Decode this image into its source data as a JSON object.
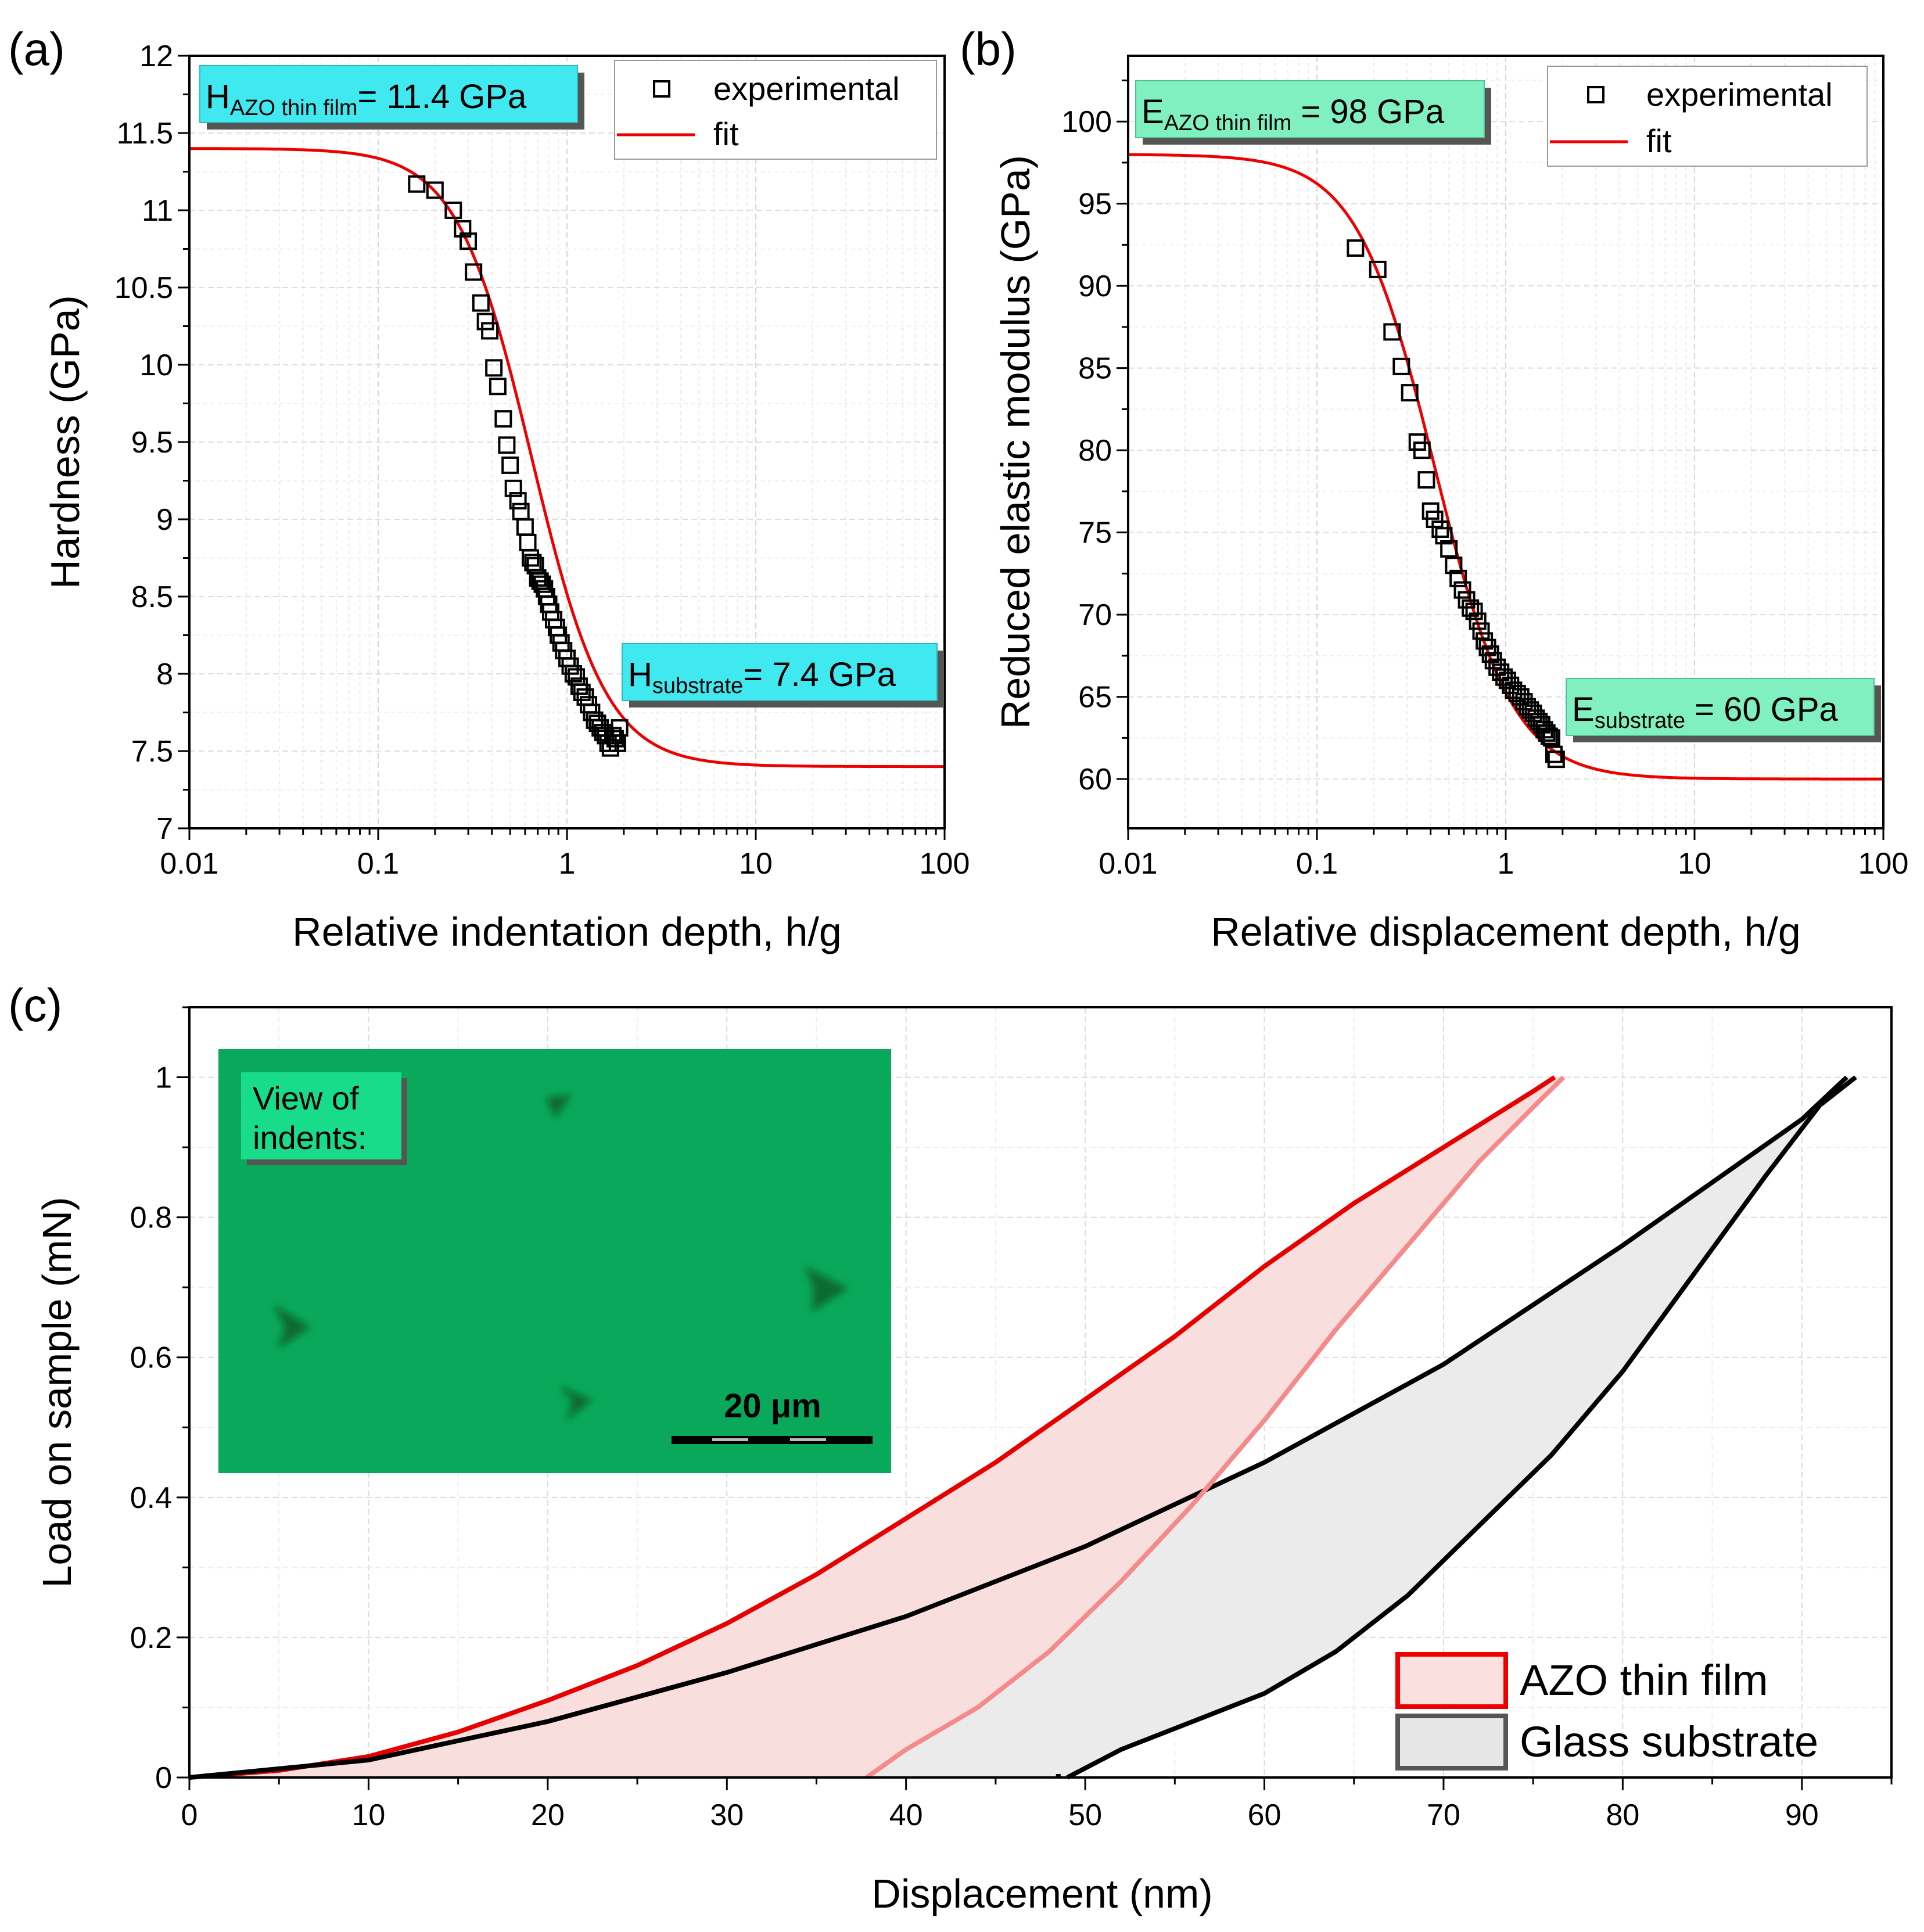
{
  "chart_data": [
    {
      "panel": "(a)",
      "type": "scatter",
      "xscale": "log",
      "xlabel": "Relative indentation depth, h/g",
      "ylabel": "Hardness (GPa)",
      "xlim": [
        0.01,
        100
      ],
      "ylim": [
        7,
        12
      ],
      "xticks": [
        "0.01",
        "0.1",
        "1",
        "10",
        "100"
      ],
      "yticks": [
        "7",
        "7.5",
        "8",
        "8.5",
        "9",
        "9.5",
        "10",
        "10.5",
        "11",
        "11.5",
        "12"
      ],
      "legend": {
        "markers": "experimental",
        "line": "fit"
      },
      "annotations": [
        {
          "main": "H",
          "sub": "AZO thin film",
          "rest": "= 11.4 GPa",
          "color": "#40e8f0"
        },
        {
          "main": "H",
          "sub": "substrate",
          "rest": "= 7.4 GPa",
          "color": "#40e8f0"
        }
      ],
      "fit": {
        "y_film": 11.4,
        "y_sub": 7.4,
        "x0": 0.65,
        "p": 2.2
      },
      "series": [
        {
          "name": "experimental",
          "x": [
            0.16,
            0.2,
            0.25,
            0.28,
            0.3,
            0.32,
            0.35,
            0.37,
            0.39,
            0.41,
            0.43,
            0.46,
            0.48,
            0.5,
            0.52,
            0.55,
            0.57,
            0.6,
            0.62,
            0.64,
            0.66,
            0.68,
            0.7,
            0.72,
            0.74,
            0.76,
            0.78,
            0.8,
            0.82,
            0.85,
            0.88,
            0.9,
            0.93,
            0.96,
            1.0,
            1.04,
            1.08,
            1.12,
            1.16,
            1.2,
            1.25,
            1.3,
            1.35,
            1.4,
            1.45,
            1.5,
            1.55,
            1.6,
            1.65,
            1.7,
            1.75,
            1.8,
            1.85,
            1.9
          ],
          "y": [
            11.17,
            11.13,
            11.0,
            10.88,
            10.8,
            10.6,
            10.4,
            10.28,
            10.22,
            9.98,
            9.86,
            9.65,
            9.48,
            9.35,
            9.2,
            9.12,
            9.05,
            8.95,
            8.85,
            8.75,
            8.72,
            8.7,
            8.62,
            8.6,
            8.58,
            8.55,
            8.5,
            8.45,
            8.4,
            8.35,
            8.3,
            8.25,
            8.2,
            8.15,
            8.1,
            8.05,
            8.0,
            7.98,
            7.92,
            7.88,
            7.85,
            7.8,
            7.75,
            7.7,
            7.68,
            7.65,
            7.62,
            7.6,
            7.55,
            7.52,
            7.6,
            7.58,
            7.55,
            7.65
          ]
        }
      ]
    },
    {
      "panel": "(b)",
      "type": "scatter",
      "xscale": "log",
      "xlabel": "Relative displacement depth, h/g",
      "ylabel": "Reduced elastic modulus (GPa)",
      "xlim": [
        0.01,
        100
      ],
      "ylim": [
        57,
        104
      ],
      "xticks": [
        "0.01",
        "0.1",
        "1",
        "10",
        "100"
      ],
      "yticks": [
        "60",
        "65",
        "70",
        "75",
        "80",
        "85",
        "90",
        "95",
        "100"
      ],
      "legend": {
        "markers": "experimental",
        "line": "fit"
      },
      "annotations": [
        {
          "main": "E",
          "sub": "AZO thin film",
          "rest": " = 98 GPa",
          "color": "#80f0c0"
        },
        {
          "main": "E",
          "sub": "substrate",
          "rest": " = 60 GPa",
          "color": "#80f0c0"
        }
      ],
      "fit": {
        "y_film": 98,
        "y_sub": 60,
        "x0": 0.42,
        "p": 2.1
      },
      "series": [
        {
          "name": "experimental",
          "x": [
            0.16,
            0.21,
            0.25,
            0.28,
            0.31,
            0.34,
            0.36,
            0.38,
            0.4,
            0.42,
            0.45,
            0.47,
            0.5,
            0.53,
            0.56,
            0.59,
            0.62,
            0.65,
            0.68,
            0.71,
            0.74,
            0.77,
            0.8,
            0.83,
            0.86,
            0.9,
            0.94,
            0.98,
            1.02,
            1.06,
            1.1,
            1.15,
            1.2,
            1.25,
            1.3,
            1.35,
            1.4,
            1.45,
            1.5,
            1.55,
            1.6,
            1.65,
            1.7,
            1.75,
            1.8,
            1.85
          ],
          "y": [
            92.3,
            91.0,
            87.2,
            85.1,
            83.5,
            80.5,
            80.0,
            78.2,
            76.3,
            75.8,
            75.2,
            74.8,
            74.0,
            73.0,
            72.2,
            71.5,
            70.9,
            70.4,
            70.2,
            69.6,
            69.0,
            68.4,
            68.0,
            67.6,
            67.2,
            66.8,
            66.5,
            66.2,
            66.0,
            65.7,
            65.4,
            65.2,
            65.0,
            64.7,
            64.4,
            64.2,
            64.0,
            63.7,
            63.5,
            63.3,
            63.0,
            62.8,
            62.6,
            62.5,
            61.5,
            61.2
          ]
        }
      ]
    },
    {
      "panel": "(c)",
      "type": "line",
      "xlabel": "Displacement (nm)",
      "ylabel": "Load on sample (mN)",
      "xlim": [
        0,
        95
      ],
      "ylim": [
        0,
        1.1
      ],
      "xticks": [
        "0",
        "10",
        "20",
        "30",
        "40",
        "50",
        "60",
        "70",
        "80",
        "90"
      ],
      "yticks": [
        "0",
        "0.2",
        "0.4",
        "0.6",
        "0.8",
        "1"
      ],
      "series": [
        {
          "name": "AZO thin film",
          "color": "#e60000",
          "fill": "#f9dede",
          "loading": {
            "x": [
              0,
              5,
              10,
              15,
              20,
              25,
              30,
              35,
              40,
              45,
              50,
              55,
              60,
              65,
              70,
              75,
              76.2
            ],
            "y": [
              0,
              0.01,
              0.03,
              0.065,
              0.11,
              0.16,
              0.22,
              0.29,
              0.37,
              0.45,
              0.54,
              0.63,
              0.73,
              0.82,
              0.9,
              0.98,
              1.0
            ]
          },
          "unloading": {
            "x": [
              76.7,
              75.5,
              72,
              68,
              64,
              60,
              56,
              52,
              48,
              44,
              40,
              37.8
            ],
            "y": [
              1.0,
              0.97,
              0.88,
              0.76,
              0.64,
              0.51,
              0.39,
              0.28,
              0.18,
              0.1,
              0.04,
              0.0
            ]
          }
        },
        {
          "name": "Glass substrate",
          "color": "#000000",
          "fill": "#ebebeb",
          "loading": {
            "x": [
              0,
              10,
              20,
              30,
              40,
              50,
              60,
              70,
              80,
              90,
              92.5
            ],
            "y": [
              0,
              0.025,
              0.08,
              0.15,
              0.23,
              0.33,
              0.45,
              0.59,
              0.76,
              0.94,
              1.0
            ]
          },
          "unloading": {
            "x": [
              93,
              91,
              88,
              84,
              80,
              76,
              72,
              68,
              64,
              60,
              56,
              52,
              49
            ],
            "y": [
              1.0,
              0.96,
              0.86,
              0.72,
              0.58,
              0.46,
              0.36,
              0.26,
              0.18,
              0.12,
              0.08,
              0.04,
              0.0
            ]
          },
          "tail": {
            "x": [
              48.5,
              48.5
            ],
            "y": [
              0.0,
              0.005
            ]
          }
        }
      ],
      "inset": {
        "label_line1": "View of",
        "label_line2": "indents:",
        "scalebar": "20 μm",
        "background": "#0aa85a"
      },
      "legend": [
        "AZO thin film",
        "Glass substrate"
      ]
    }
  ]
}
